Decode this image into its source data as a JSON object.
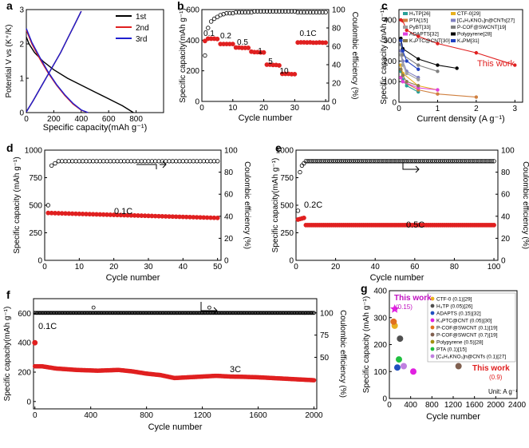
{
  "panels": [
    {
      "id": "a",
      "letter": "a",
      "type": "line",
      "xlabel": "Specific capacity(mAh g⁻¹)",
      "ylabel": "Potential V vs (K⁺/K)",
      "xlim": [
        0,
        1000
      ],
      "ylim": [
        0,
        3.0
      ],
      "xticks": [
        "0",
        "200",
        "400",
        "600",
        "800"
      ],
      "xtick_values": [
        0,
        200,
        400,
        600,
        800
      ],
      "yticks": [
        "0",
        "1",
        "2",
        "3"
      ],
      "ytick_values": [
        0,
        1,
        2,
        3
      ],
      "legend": [
        "1st",
        "2nd",
        "3rd"
      ],
      "series": [
        {
          "name": "1st",
          "color": "#000000",
          "x": [
            0,
            20,
            60,
            120,
            200,
            300,
            400,
            500,
            600,
            700,
            780
          ],
          "y": [
            2.2,
            2.0,
            1.75,
            1.5,
            1.25,
            1.0,
            0.8,
            0.6,
            0.4,
            0.2,
            0.0
          ]
        },
        {
          "name": "1st charge",
          "color": "#000000",
          "x": [
            0,
            50,
            100,
            150,
            200,
            250,
            300,
            350,
            400
          ],
          "y": [
            0.02,
            0.35,
            0.7,
            1.05,
            1.4,
            1.75,
            2.15,
            2.55,
            2.95
          ]
        },
        {
          "name": "2nd",
          "color": "#e02020",
          "x": [
            0,
            40,
            100,
            160,
            220,
            280,
            340,
            400,
            450
          ],
          "y": [
            2.4,
            2.0,
            1.55,
            1.15,
            0.8,
            0.5,
            0.25,
            0.07,
            0.0
          ]
        },
        {
          "name": "2nd charge",
          "color": "#e02020",
          "x": [
            0,
            50,
            100,
            150,
            200,
            250,
            300,
            350,
            400
          ],
          "y": [
            0.02,
            0.35,
            0.7,
            1.05,
            1.4,
            1.75,
            2.15,
            2.55,
            2.95
          ]
        },
        {
          "name": "3rd",
          "color": "#2020d0",
          "x": [
            0,
            40,
            100,
            160,
            220,
            280,
            340,
            400,
            450
          ],
          "y": [
            2.45,
            2.05,
            1.6,
            1.18,
            0.82,
            0.52,
            0.27,
            0.08,
            0.0
          ]
        },
        {
          "name": "3rd charge",
          "color": "#2020d0",
          "x": [
            0,
            50,
            100,
            150,
            200,
            250,
            300,
            350,
            400
          ],
          "y": [
            0.02,
            0.35,
            0.7,
            1.05,
            1.4,
            1.75,
            2.15,
            2.55,
            2.95
          ]
        }
      ]
    },
    {
      "id": "b",
      "letter": "b",
      "type": "scatter",
      "xlabel": "Cycle number",
      "ylabel": "Specific capacity(mAh g⁻¹)",
      "y2label": "Coulombic efficiency (%)",
      "xlim": [
        0,
        41
      ],
      "ylim": [
        0,
        600
      ],
      "y2lim": [
        0,
        100
      ],
      "xticks": [
        "0",
        "10",
        "20",
        "30",
        "40"
      ],
      "xtick_values": [
        0,
        10,
        20,
        30,
        40
      ],
      "yticks": [
        "0",
        "200",
        "400",
        "600"
      ],
      "ytick_values": [
        0,
        200,
        400,
        600
      ],
      "y2ticks": [
        "0",
        "20",
        "40",
        "60",
        "80",
        "100"
      ],
      "y2tick_values": [
        0,
        20,
        40,
        60,
        80,
        100
      ],
      "annotations": [
        "0.1",
        "0.2",
        "0.5",
        "1",
        "5",
        "10",
        "0.1C"
      ],
      "capacity": [
        395,
        410,
        410,
        410,
        408,
        375,
        375,
        375,
        375,
        375,
        352,
        352,
        350,
        350,
        350,
        325,
        322,
        322,
        320,
        320,
        240,
        240,
        238,
        238,
        235,
        180,
        180,
        180,
        178,
        178,
        385,
        386,
        386,
        385,
        386,
        384,
        384,
        385,
        384,
        384
      ],
      "efficiency": [
        50,
        80,
        87,
        90,
        92,
        94,
        95,
        96,
        96,
        96,
        97,
        97,
        97,
        97,
        97,
        97,
        98,
        98,
        98,
        98,
        98,
        98,
        98,
        98,
        98,
        98,
        98,
        98,
        98,
        98,
        97,
        97,
        97,
        97,
        97,
        97,
        97,
        97,
        97,
        97
      ]
    },
    {
      "id": "c",
      "letter": "c",
      "type": "line",
      "xlabel": "Current density (A g⁻¹)",
      "ylabel": "Specific capacity (mAh g⁻¹)",
      "xlim": [
        0,
        3.2
      ],
      "ylim": [
        0,
        450
      ],
      "xticks": [
        "0",
        "1",
        "2",
        "3"
      ],
      "xtick_values": [
        0,
        1,
        2,
        3
      ],
      "yticks": [
        "0",
        "100",
        "200",
        "300",
        "400"
      ],
      "ytick_values": [
        0,
        100,
        200,
        300,
        400
      ],
      "this_work_label": "This work",
      "series": [
        {
          "name": "H₄TP[26]",
          "color": "#2aa198",
          "x": [
            0.05,
            0.1,
            0.2,
            0.5
          ],
          "y": [
            150,
            110,
            80,
            50
          ]
        },
        {
          "name": "CTF-0[29]",
          "color": "#e8b020",
          "x": [
            0.05,
            0.1,
            0.5,
            1.0
          ],
          "y": [
            180,
            140,
            80,
            60
          ]
        },
        {
          "name": "PTA[15]",
          "color": "#d08040",
          "x": [
            0.05,
            0.1,
            0.5,
            1.0,
            2.0
          ],
          "y": [
            120,
            100,
            60,
            40,
            25
          ]
        },
        {
          "name": "[C₆H₄KNO₃]n@CNTs[27]",
          "color": "#8080c0",
          "x": [
            0.05,
            0.1,
            0.2,
            0.5
          ],
          "y": [
            250,
            200,
            150,
            120
          ]
        },
        {
          "name": "PyBT[33]",
          "color": "#a0a0a0",
          "x": [
            0.05,
            0.1,
            0.2,
            0.5
          ],
          "y": [
            230,
            180,
            140,
            110
          ]
        },
        {
          "name": "P-COF@SWCNT[19]",
          "color": "#808080",
          "x": [
            0.05,
            0.1,
            0.5,
            1.0
          ],
          "y": [
            280,
            230,
            180,
            150
          ]
        },
        {
          "name": "ADAPTS[32]",
          "color": "#e040e0",
          "x": [
            0.05,
            0.1,
            0.5,
            1.0
          ],
          "y": [
            120,
            100,
            70,
            60
          ]
        },
        {
          "name": "Polypyrene[28]",
          "color": "#000000",
          "x": [
            0.05,
            0.1,
            0.5,
            1.0,
            1.5
          ],
          "y": [
            310,
            260,
            210,
            180,
            165
          ]
        },
        {
          "name": "K₄PTC@CNT[30]",
          "color": "#8a7a50",
          "x": [
            0.05,
            0.1,
            0.2,
            0.5
          ],
          "y": [
            160,
            130,
            100,
            80
          ]
        },
        {
          "name": "K₄PM[31]",
          "color": "#2040c0",
          "x": [
            0.05,
            0.1,
            0.2,
            0.5
          ],
          "y": [
            300,
            250,
            200,
            160
          ]
        },
        {
          "name": "This work",
          "color": "#e02020",
          "x": [
            0.05,
            0.1,
            0.2,
            0.5,
            1.0,
            2.0,
            3.0
          ],
          "y": [
            400,
            395,
            350,
            320,
            285,
            240,
            180
          ]
        }
      ]
    },
    {
      "id": "d",
      "letter": "d",
      "type": "scatter",
      "xlabel": "Cycle number",
      "ylabel": "Specific capacity (mAh g⁻¹)",
      "y2label": "Coulombic efficiency (%)",
      "xlim": [
        0,
        51
      ],
      "ylim": [
        0,
        1000
      ],
      "y2lim": [
        0,
        100
      ],
      "xticks": [
        "0",
        "10",
        "20",
        "30",
        "40",
        "50"
      ],
      "xtick_values": [
        0,
        10,
        20,
        30,
        40,
        50
      ],
      "yticks": [
        "0",
        "250",
        "500",
        "750",
        "1000"
      ],
      "ytick_values": [
        0,
        250,
        500,
        750,
        1000
      ],
      "y2ticks": [
        "0",
        "20",
        "40",
        "60",
        "80",
        "100"
      ],
      "y2tick_values": [
        0,
        20,
        40,
        60,
        80,
        100
      ],
      "rate_label": "0.1C",
      "cap_start": 430,
      "cap_end": 385,
      "ce_first": 50,
      "ce_level": 90
    },
    {
      "id": "e",
      "letter": "e",
      "type": "scatter",
      "xlabel": "Cycle number",
      "ylabel": "Specific capacity(mAh g⁻¹)",
      "y2label": "Coulombic efficiency (%)",
      "xlim": [
        0,
        102
      ],
      "ylim": [
        0,
        1000
      ],
      "y2lim": [
        0,
        100
      ],
      "xticks": [
        "0",
        "20",
        "40",
        "60",
        "80",
        "100"
      ],
      "xtick_values": [
        0,
        20,
        40,
        60,
        80,
        100
      ],
      "yticks": [
        "0",
        "250",
        "500",
        "750",
        "1000"
      ],
      "ytick_values": [
        0,
        250,
        500,
        750,
        1000
      ],
      "y2ticks": [
        "0",
        "20",
        "40",
        "60",
        "80",
        "100"
      ],
      "y2tick_values": [
        0,
        20,
        40,
        60,
        80,
        100
      ],
      "rate_labels": [
        "0.2C",
        "0.5C"
      ],
      "cap_first": [
        370,
        375,
        380,
        385
      ],
      "cap_level": 320,
      "ce_first": [
        45,
        80,
        86,
        88
      ],
      "ce_level": 90
    },
    {
      "id": "f",
      "letter": "f",
      "type": "scatter",
      "xlabel": "Cycle number",
      "ylabel": "Specific capacity(mAh g⁻¹)",
      "y2label": "Coulombic efficiency (%)",
      "xlim": [
        -10,
        2020
      ],
      "ylim": [
        -50,
        700
      ],
      "y2lim": [
        -8,
        116
      ],
      "xticks": [
        "0",
        "400",
        "800",
        "1200",
        "1600",
        "2000"
      ],
      "xtick_values": [
        0,
        400,
        800,
        1200,
        1600,
        2000
      ],
      "yticks": [
        "0",
        "200",
        "400",
        "600"
      ],
      "ytick_values": [
        0,
        200,
        400,
        600
      ],
      "y2ticks": [
        "50",
        "75",
        "100"
      ],
      "y2tick_values": [
        50,
        75,
        100
      ],
      "rate_labels": [
        "0.1C",
        "3C"
      ],
      "cap_x": [
        0,
        50,
        150,
        300,
        450,
        600,
        700,
        800,
        900,
        1000,
        1100,
        1200,
        1300,
        1400,
        1500,
        1600,
        1700,
        1800,
        1900,
        2000
      ],
      "cap_y": [
        240,
        240,
        225,
        215,
        210,
        215,
        205,
        190,
        180,
        160,
        165,
        170,
        175,
        170,
        168,
        165,
        160,
        155,
        150,
        145
      ],
      "ce_level": 100
    },
    {
      "id": "g",
      "letter": "g",
      "type": "scatter",
      "xlabel": "Cycle number",
      "ylabel": "Specific capacity (mAh g⁻¹)",
      "xlim": [
        0,
        2400
      ],
      "ylim": [
        0,
        400
      ],
      "xticks": [
        "0",
        "400",
        "800",
        "1200",
        "1600",
        "2000",
        "2400"
      ],
      "xtick_values": [
        0,
        400,
        800,
        1200,
        1600,
        2000,
        2400
      ],
      "yticks": [
        "0",
        "100",
        "200",
        "300",
        "400"
      ],
      "ytick_values": [
        0,
        100,
        200,
        300,
        400
      ],
      "unit_note": "Unit: A g⁻¹",
      "this_work_labels": [
        "This work",
        "(0.15)",
        "This work",
        "(0.9)"
      ],
      "points": [
        {
          "name": "CTF-0 (0.1)[29]",
          "color": "#e8b020",
          "x": 100,
          "y": 270
        },
        {
          "name": "H₄TP (0.05)[26]",
          "color": "#505050",
          "x": 200,
          "y": 222
        },
        {
          "name": "ADAPTS (0.15)[32]",
          "color": "#2050c0",
          "x": 150,
          "y": 115
        },
        {
          "name": "K₄PTC@CNT (0.05)[30]",
          "color": "#e020e0",
          "x": 450,
          "y": 100
        },
        {
          "name": "P-COF@SWCNT (0.1)[19]",
          "color": "#e07020",
          "x": 80,
          "y": 285
        },
        {
          "name": "P-COF@SWCNT (0.7)[19]",
          "color": "#806050",
          "x": 1300,
          "y": 120
        },
        {
          "name": "Polypyrene (0.5)[28]",
          "color": "#a09010",
          "x": 1000,
          "y": 190
        },
        {
          "name": "PTA (0.1)[15]",
          "color": "#20c040",
          "x": 180,
          "y": 145
        },
        {
          "name": "[C₆H₄KNO₃]n@CNTs (0.1)[27]",
          "color": "#c080e0",
          "x": 270,
          "y": 120
        },
        {
          "name": "This work (0.15)",
          "color": "#e020e0",
          "x": 100,
          "y": 332
        },
        {
          "name": "This work (0.9)",
          "color": "#e02020",
          "x": 2000,
          "y": 148
        }
      ]
    }
  ]
}
